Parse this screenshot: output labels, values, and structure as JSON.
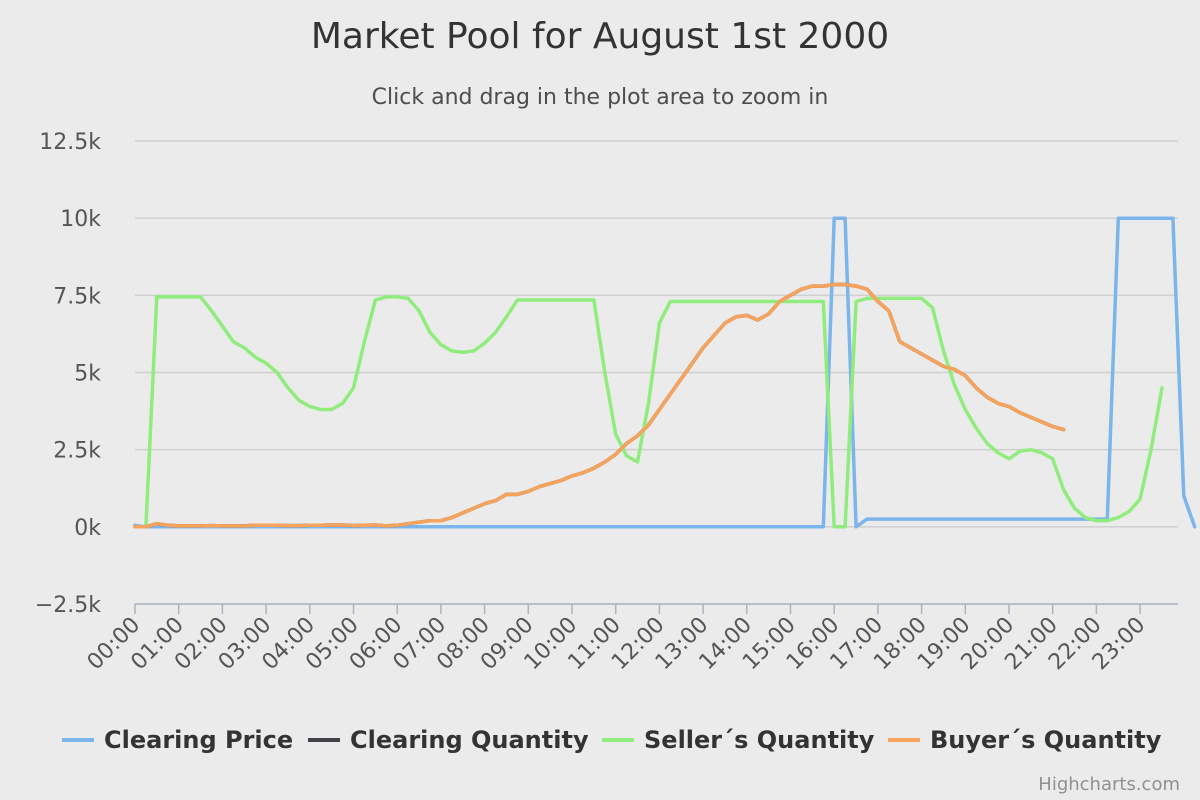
{
  "chart_data": {
    "type": "line",
    "title": "Market Pool for August 1st 2000",
    "subtitle": "Click and drag in the plot area to zoom in",
    "xlabel": "",
    "ylabel": "",
    "x_interval_minutes": 15,
    "x_ticks": [
      "00:00",
      "01:00",
      "02:00",
      "03:00",
      "04:00",
      "05:00",
      "06:00",
      "07:00",
      "08:00",
      "09:00",
      "10:00",
      "11:00",
      "12:00",
      "13:00",
      "14:00",
      "15:00",
      "16:00",
      "17:00",
      "18:00",
      "19:00",
      "20:00",
      "21:00",
      "22:00",
      "23:00"
    ],
    "y_ticks": [
      "−2.5k",
      "0k",
      "2.5k",
      "5k",
      "7.5k",
      "10k",
      "12.5k"
    ],
    "ylim": [
      -2500,
      12500
    ],
    "grid": true,
    "legend_position": "bottom",
    "credits": "Highcharts.com",
    "series": [
      {
        "name": "Clearing Price",
        "color": "#7cb5ec",
        "values": [
          50,
          0,
          0,
          0,
          0,
          0,
          0,
          0,
          0,
          0,
          0,
          0,
          0,
          0,
          0,
          0,
          0,
          0,
          0,
          0,
          0,
          0,
          0,
          0,
          0,
          0,
          0,
          0,
          0,
          0,
          0,
          0,
          0,
          0,
          0,
          0,
          0,
          0,
          0,
          0,
          0,
          0,
          0,
          0,
          0,
          0,
          0,
          0,
          0,
          0,
          0,
          0,
          0,
          0,
          0,
          0,
          0,
          0,
          0,
          0,
          0,
          0,
          0,
          0,
          10000,
          10000,
          0,
          250,
          250,
          250,
          250,
          250,
          250,
          250,
          250,
          250,
          250,
          250,
          250,
          250,
          250,
          250,
          250,
          250,
          250,
          250,
          250,
          250,
          250,
          250,
          10000,
          10000,
          10000,
          10000,
          10000,
          10000,
          1000,
          0
        ]
      },
      {
        "name": "Clearing Quantity",
        "color": "#434348",
        "values": [
          0,
          0,
          100,
          50,
          30,
          30,
          30,
          40,
          30,
          30,
          30,
          50,
          50,
          50,
          40,
          40,
          50,
          50,
          60,
          60,
          40,
          50,
          60,
          30,
          50,
          100,
          150,
          200,
          200,
          300,
          450,
          600,
          750,
          850,
          1050,
          1050,
          1150,
          1300,
          1400,
          1500,
          1650,
          1750,
          1900,
          2100,
          2350,
          2700,
          2950,
          3300,
          3800,
          4300,
          4800,
          5300,
          5800,
          6200,
          6600,
          6800,
          6850,
          6700,
          6900,
          7300,
          7500,
          7700,
          7800,
          7800,
          7850,
          7850,
          7800,
          7700,
          7300,
          7000,
          6000,
          5800,
          5600,
          5400,
          5200,
          5100,
          4900,
          4500,
          4200,
          4000,
          3900,
          3700,
          3550,
          3400,
          3250,
          3150
        ]
      },
      {
        "name": "Seller´s Quantity",
        "color": "#90ed7d",
        "values": [
          0,
          0,
          7450,
          7450,
          7450,
          7450,
          7450,
          7000,
          6500,
          6000,
          5800,
          5500,
          5300,
          5000,
          4500,
          4100,
          3900,
          3800,
          3800,
          4000,
          4500,
          6000,
          7350,
          7450,
          7450,
          7400,
          7000,
          6300,
          5900,
          5700,
          5650,
          5700,
          5950,
          6300,
          6800,
          7350,
          7350,
          7350,
          7350,
          7350,
          7350,
          7350,
          7350,
          5000,
          3000,
          2300,
          2100,
          4000,
          6600,
          7300,
          7300,
          7300,
          7300,
          7300,
          7300,
          7300,
          7300,
          7300,
          7300,
          7300,
          7300,
          7300,
          7300,
          7300,
          0,
          0,
          7300,
          7400,
          7400,
          7400,
          7400,
          7400,
          7400,
          7100,
          5700,
          4600,
          3800,
          3200,
          2700,
          2400,
          2200,
          2450,
          2500,
          2400,
          2200,
          1200,
          600,
          300,
          200,
          200,
          300,
          500,
          900,
          2500,
          4500
        ]
      }
    ]
  }
}
